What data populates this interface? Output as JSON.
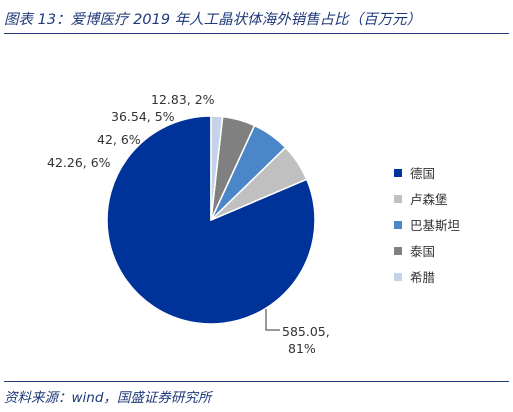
{
  "header": {
    "title": "图表 13：爱博医疗 2019 年人工晶状体海外销售占比（百万元）"
  },
  "footer": {
    "source": "资料来源：wind，国盛证券研究所"
  },
  "chart_data": {
    "type": "pie",
    "title": "",
    "unit": "百万元",
    "legend_position": "right",
    "slices": [
      {
        "name": "德国",
        "value": 585.05,
        "percent": "81%",
        "label_line1": "585.05,",
        "label_line2": "81%",
        "color": "#003399"
      },
      {
        "name": "卢森堡",
        "value": 42.26,
        "percent": "6%",
        "label_line1": "42.26, 6%",
        "color": "#c0c0c0"
      },
      {
        "name": "巴基斯坦",
        "value": 42,
        "percent": "6%",
        "label_line1": "42, 6%",
        "color": "#4a86c8"
      },
      {
        "name": "泰国",
        "value": 36.54,
        "percent": "5%",
        "label_line1": "36.54, 5%",
        "color": "#808080"
      },
      {
        "name": "希腊",
        "value": 12.83,
        "percent": "2%",
        "label_line1": "12.83, 2%",
        "color": "#c4d3ea"
      }
    ]
  }
}
